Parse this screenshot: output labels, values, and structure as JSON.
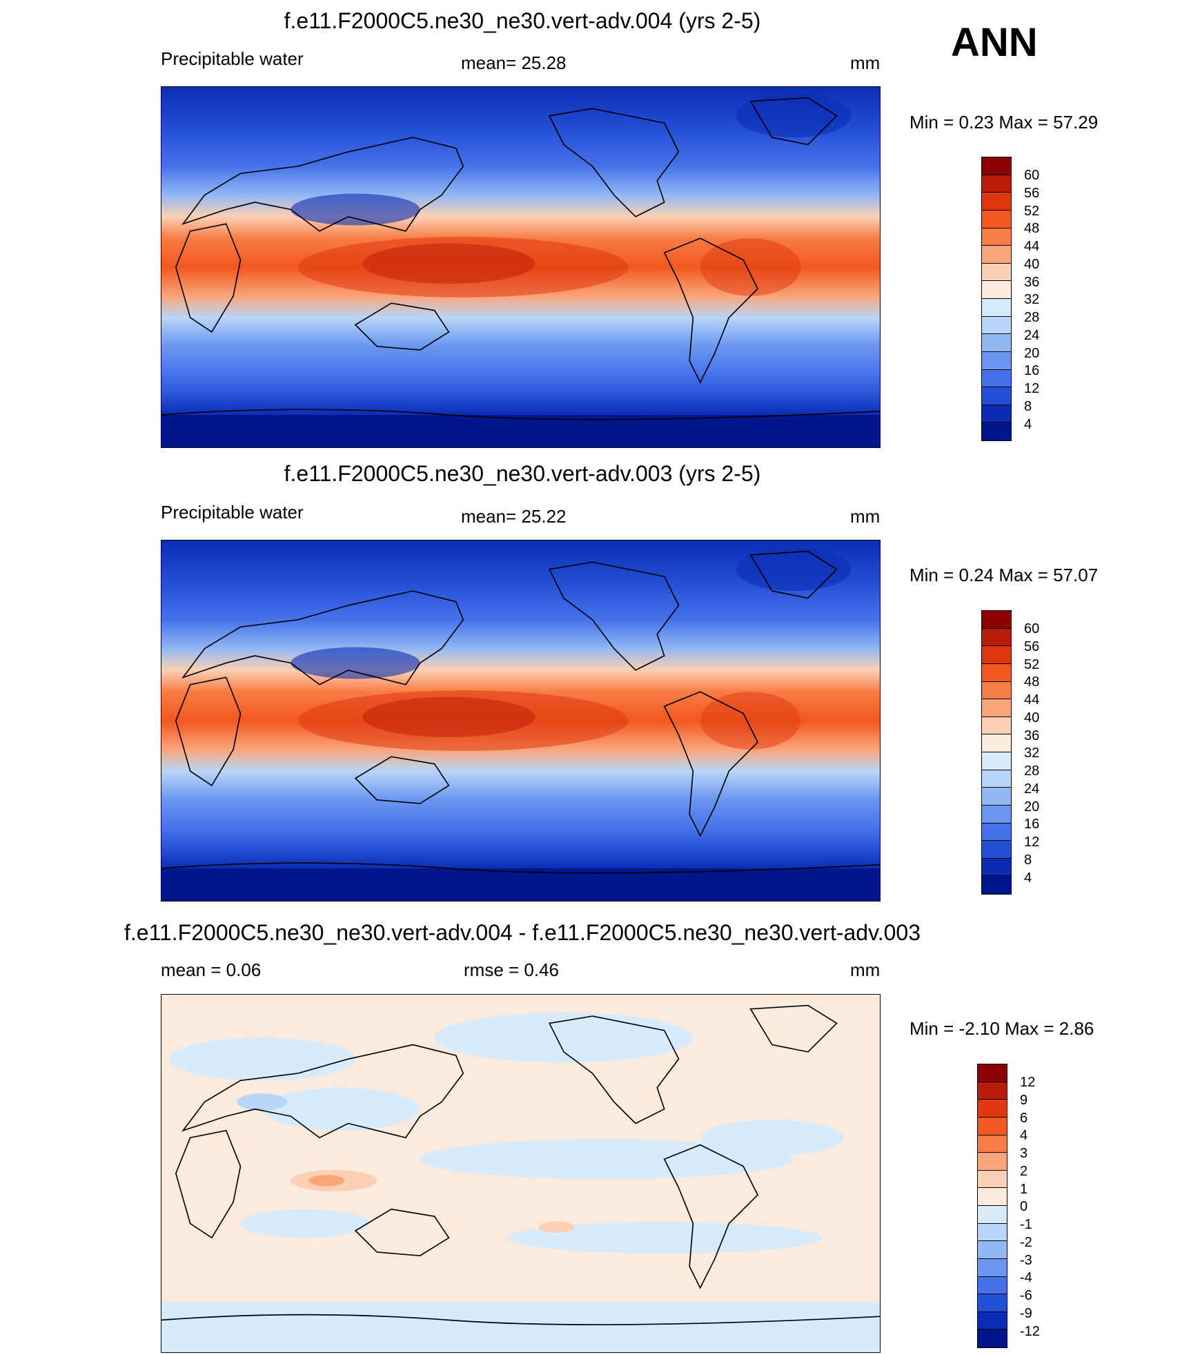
{
  "season_label": "ANN",
  "panels": [
    {
      "title": "f.e11.F2000C5.ne30_ne30.vert-adv.004 (yrs 2-5)",
      "left_label": "Precipitable water",
      "center_label": "mean=  25.28",
      "units": "mm",
      "minmax": "Min =    0.23 Max =  57.29",
      "colorbar": {
        "colors": [
          "#8b0000",
          "#bb1c0a",
          "#e0380e",
          "#f2581f",
          "#f87d45",
          "#fba57a",
          "#fcd0b4",
          "#fcebdc",
          "#d8ebfa",
          "#b8d6f8",
          "#92b8f5",
          "#6a96f0",
          "#4572ea",
          "#2450d6",
          "#0a2db4",
          "#00168c"
        ],
        "ticks": [
          "60",
          "56",
          "52",
          "48",
          "44",
          "40",
          "36",
          "32",
          "28",
          "24",
          "20",
          "16",
          "12",
          "8",
          "4"
        ]
      }
    },
    {
      "title": "f.e11.F2000C5.ne30_ne30.vert-adv.003 (yrs 2-5)",
      "left_label": "Precipitable water",
      "center_label": "mean=  25.22",
      "units": "mm",
      "minmax": "Min =    0.24 Max =  57.07",
      "colorbar": {
        "colors": [
          "#8b0000",
          "#bb1c0a",
          "#e0380e",
          "#f2581f",
          "#f87d45",
          "#fba57a",
          "#fcd0b4",
          "#fcebdc",
          "#d8ebfa",
          "#b8d6f8",
          "#92b8f5",
          "#6a96f0",
          "#4572ea",
          "#2450d6",
          "#0a2db4",
          "#00168c"
        ],
        "ticks": [
          "60",
          "56",
          "52",
          "48",
          "44",
          "40",
          "36",
          "32",
          "28",
          "24",
          "20",
          "16",
          "12",
          "8",
          "4"
        ]
      }
    },
    {
      "title": "f.e11.F2000C5.ne30_ne30.vert-adv.004 - f.e11.F2000C5.ne30_ne30.vert-adv.003",
      "left_label": "mean =    0.06",
      "center_label": "rmse =    0.46",
      "units": "mm",
      "minmax": "Min =  -2.10 Max =    2.86",
      "colorbar": {
        "colors": [
          "#8b0000",
          "#bb1c0a",
          "#e0380e",
          "#f2581f",
          "#f87d45",
          "#fba57a",
          "#fcd0b4",
          "#fcebdc",
          "#d8ebfa",
          "#b8d6f8",
          "#92b8f5",
          "#6a96f0",
          "#4572ea",
          "#2450d6",
          "#0a2db4",
          "#00168c"
        ],
        "ticks": [
          "12",
          "9",
          "6",
          "4",
          "3",
          "2",
          "1",
          "0",
          "-1",
          "-2",
          "-3",
          "-4",
          "-6",
          "-9",
          "-12"
        ]
      }
    }
  ]
}
